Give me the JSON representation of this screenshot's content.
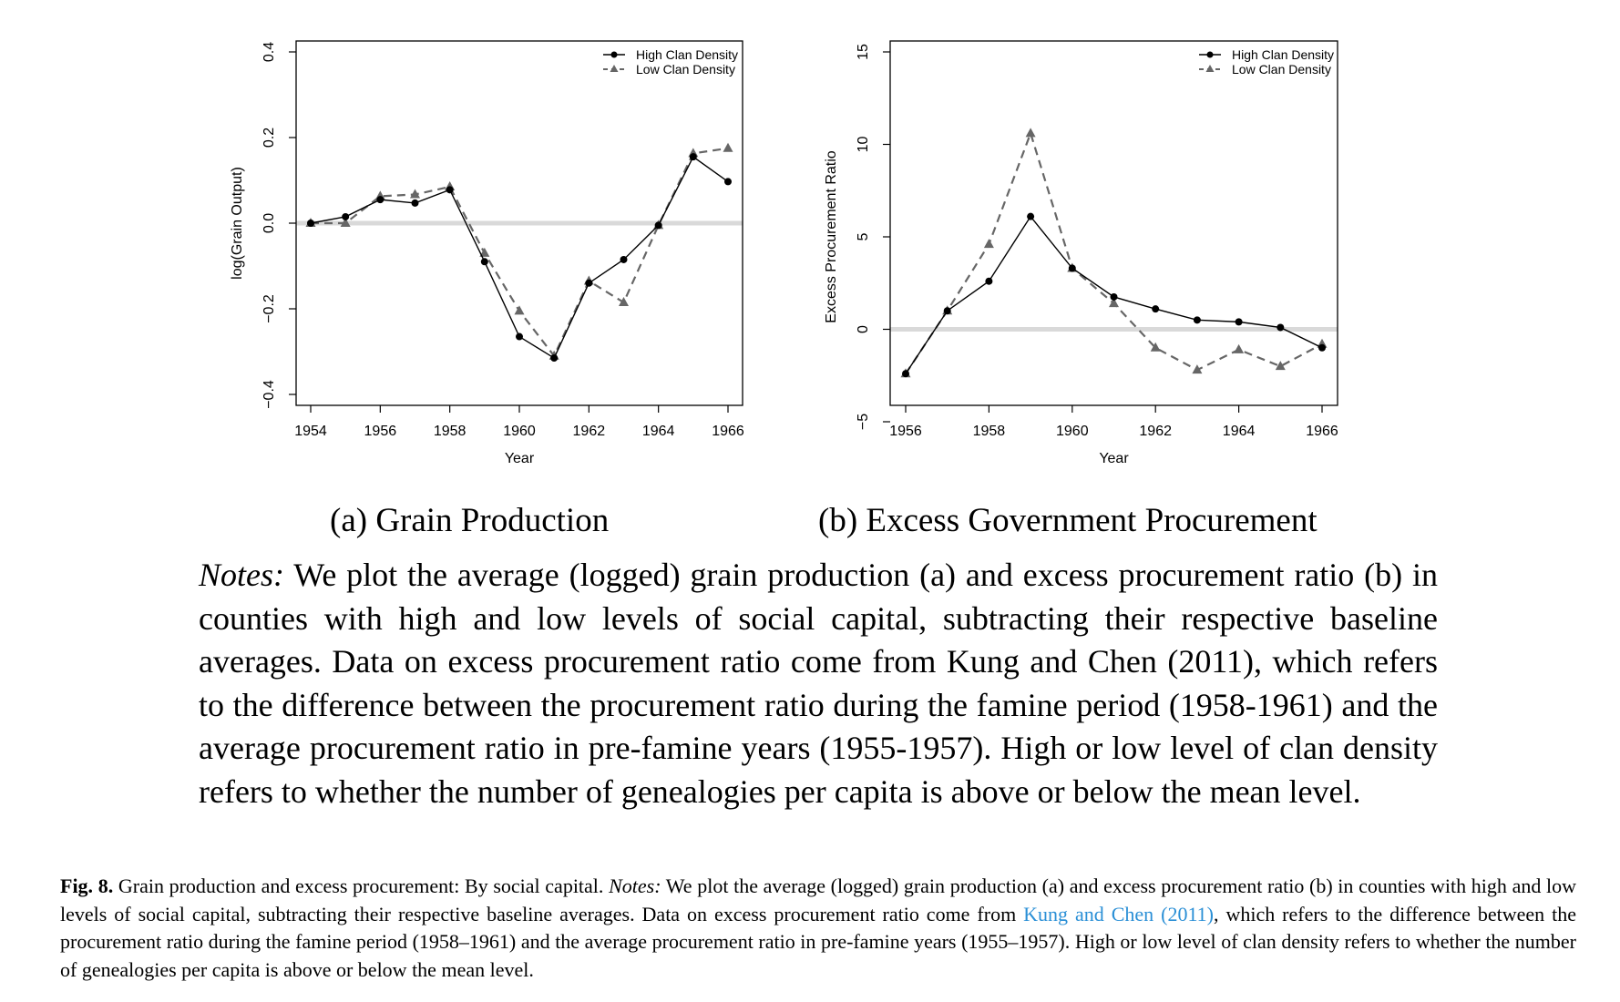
{
  "chart_data": [
    {
      "type": "line",
      "subtitle": "(a) Grain Production",
      "xlabel": "Year",
      "ylabel": "log(Grain Output)",
      "x_ticks": [
        "1954",
        "1956",
        "1958",
        "1960",
        "1962",
        "1964",
        "1966"
      ],
      "y_ticks": [
        "−0.4",
        "−0.2",
        "0.0",
        "0.2",
        "0.4"
      ],
      "xlim": [
        1954,
        1966
      ],
      "ylim": [
        -0.4,
        0.4
      ],
      "reference_line": 0,
      "legend_position": "top-right",
      "x": [
        1954,
        1955,
        1956,
        1957,
        1958,
        1959,
        1960,
        1961,
        1962,
        1963,
        1964,
        1965,
        1966
      ],
      "series": [
        {
          "name": "High Clan Density",
          "style": "solid",
          "marker": "circle",
          "color": "#000000",
          "values": [
            0.0,
            0.015,
            0.055,
            0.047,
            0.078,
            -0.09,
            -0.265,
            -0.315,
            -0.14,
            -0.085,
            -0.005,
            0.155,
            0.097
          ]
        },
        {
          "name": "Low Clan Density",
          "style": "dashed",
          "marker": "triangle",
          "color": "#666666",
          "values": [
            0.0,
            0.0,
            0.063,
            0.067,
            0.085,
            -0.07,
            -0.205,
            -0.31,
            -0.135,
            -0.185,
            -0.005,
            0.163,
            0.175
          ]
        }
      ]
    },
    {
      "type": "line",
      "subtitle": "(b) Excess Government Procurement",
      "xlabel": "Year",
      "ylabel": "Excess Procurement Ratio",
      "x_ticks": [
        "1956",
        "1958",
        "1960",
        "1962",
        "1964",
        "1966"
      ],
      "y_ticks": [
        "−5",
        "0",
        "5",
        "10",
        "15"
      ],
      "xlim": [
        1956,
        1966
      ],
      "ylim": [
        -5,
        15
      ],
      "reference_line": 0,
      "legend_position": "top-right",
      "x": [
        1956,
        1957,
        1958,
        1959,
        1960,
        1961,
        1962,
        1963,
        1964,
        1965,
        1966
      ],
      "series": [
        {
          "name": "High Clan Density",
          "style": "solid",
          "marker": "circle",
          "color": "#000000",
          "values": [
            -2.4,
            1.0,
            2.6,
            6.1,
            3.3,
            1.75,
            1.1,
            0.5,
            0.4,
            0.1,
            -1.0
          ]
        },
        {
          "name": "Low Clan Density",
          "style": "dashed",
          "marker": "triangle",
          "color": "#666666",
          "values": [
            -2.4,
            1.0,
            4.6,
            10.6,
            3.3,
            1.4,
            -1.0,
            -2.2,
            -1.1,
            -2.0,
            -0.8
          ]
        }
      ]
    }
  ],
  "notes": {
    "label": "Notes:",
    "text": "We plot the average (logged) grain production (a) and excess procurement ratio (b) in counties with high and low levels of social capital, subtracting their respective baseline averages. Data on excess procurement ratio come from Kung and Chen (2011), which refers to the difference between the procurement ratio during the famine period (1958-1961) and the average procurement ratio in pre-famine years (1955-1957). High or low level of clan density refers to whether the number of genealogies per capita is above or below the mean level."
  },
  "caption": {
    "fig_label": "Fig. 8.",
    "title": "Grain production and excess procurement: By social capital.",
    "notes_label": "Notes:",
    "text_before_link": "We plot the average (logged) grain production (a) and excess procurement ratio (b) in counties with high and low levels of social capital, subtracting their respective baseline averages. Data on excess procurement ratio come from",
    "link_text": "Kung and Chen (2011)",
    "text_after_link": ", which refers to the difference between the procurement ratio during the famine period (1958–1961) and the average procurement ratio in pre-famine years (1955–1957). High or low level of clan density refers to whether the number of genealogies per capita is above or below the mean level.",
    "link_color": "#2a8fd6"
  }
}
